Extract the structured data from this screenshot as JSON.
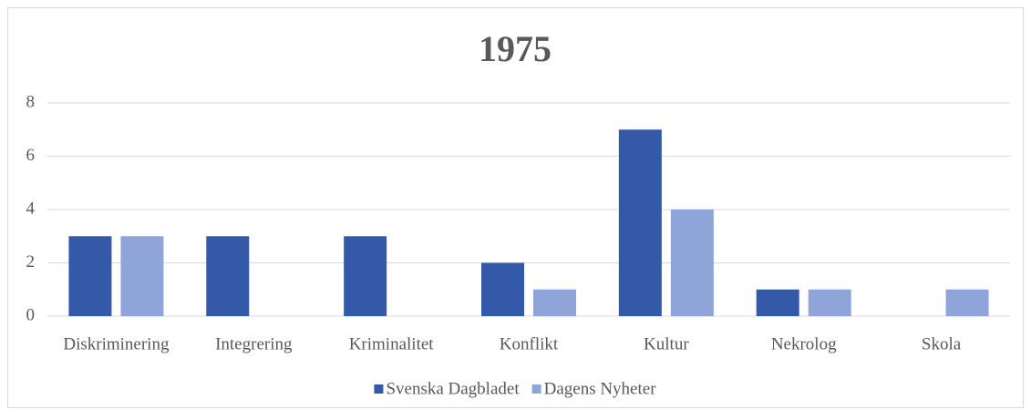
{
  "chart_data": {
    "type": "bar",
    "title": "1975",
    "categories": [
      "Diskriminering",
      "Integrering",
      "Kriminalitet",
      "Konflikt",
      "Kultur",
      "Nekrolog",
      "Skola"
    ],
    "series": [
      {
        "name": "Svenska Dagbladet",
        "color": "#3559a9",
        "values": [
          3,
          3,
          3,
          2,
          7,
          1,
          0
        ]
      },
      {
        "name": "Dagens Nyheter",
        "color": "#8fa4d9",
        "values": [
          3,
          0,
          0,
          1,
          4,
          1,
          1
        ]
      }
    ],
    "ylim": [
      0,
      8
    ],
    "yticks": [
      0,
      2,
      4,
      6,
      8
    ],
    "grid": true,
    "legend": "bottom"
  }
}
